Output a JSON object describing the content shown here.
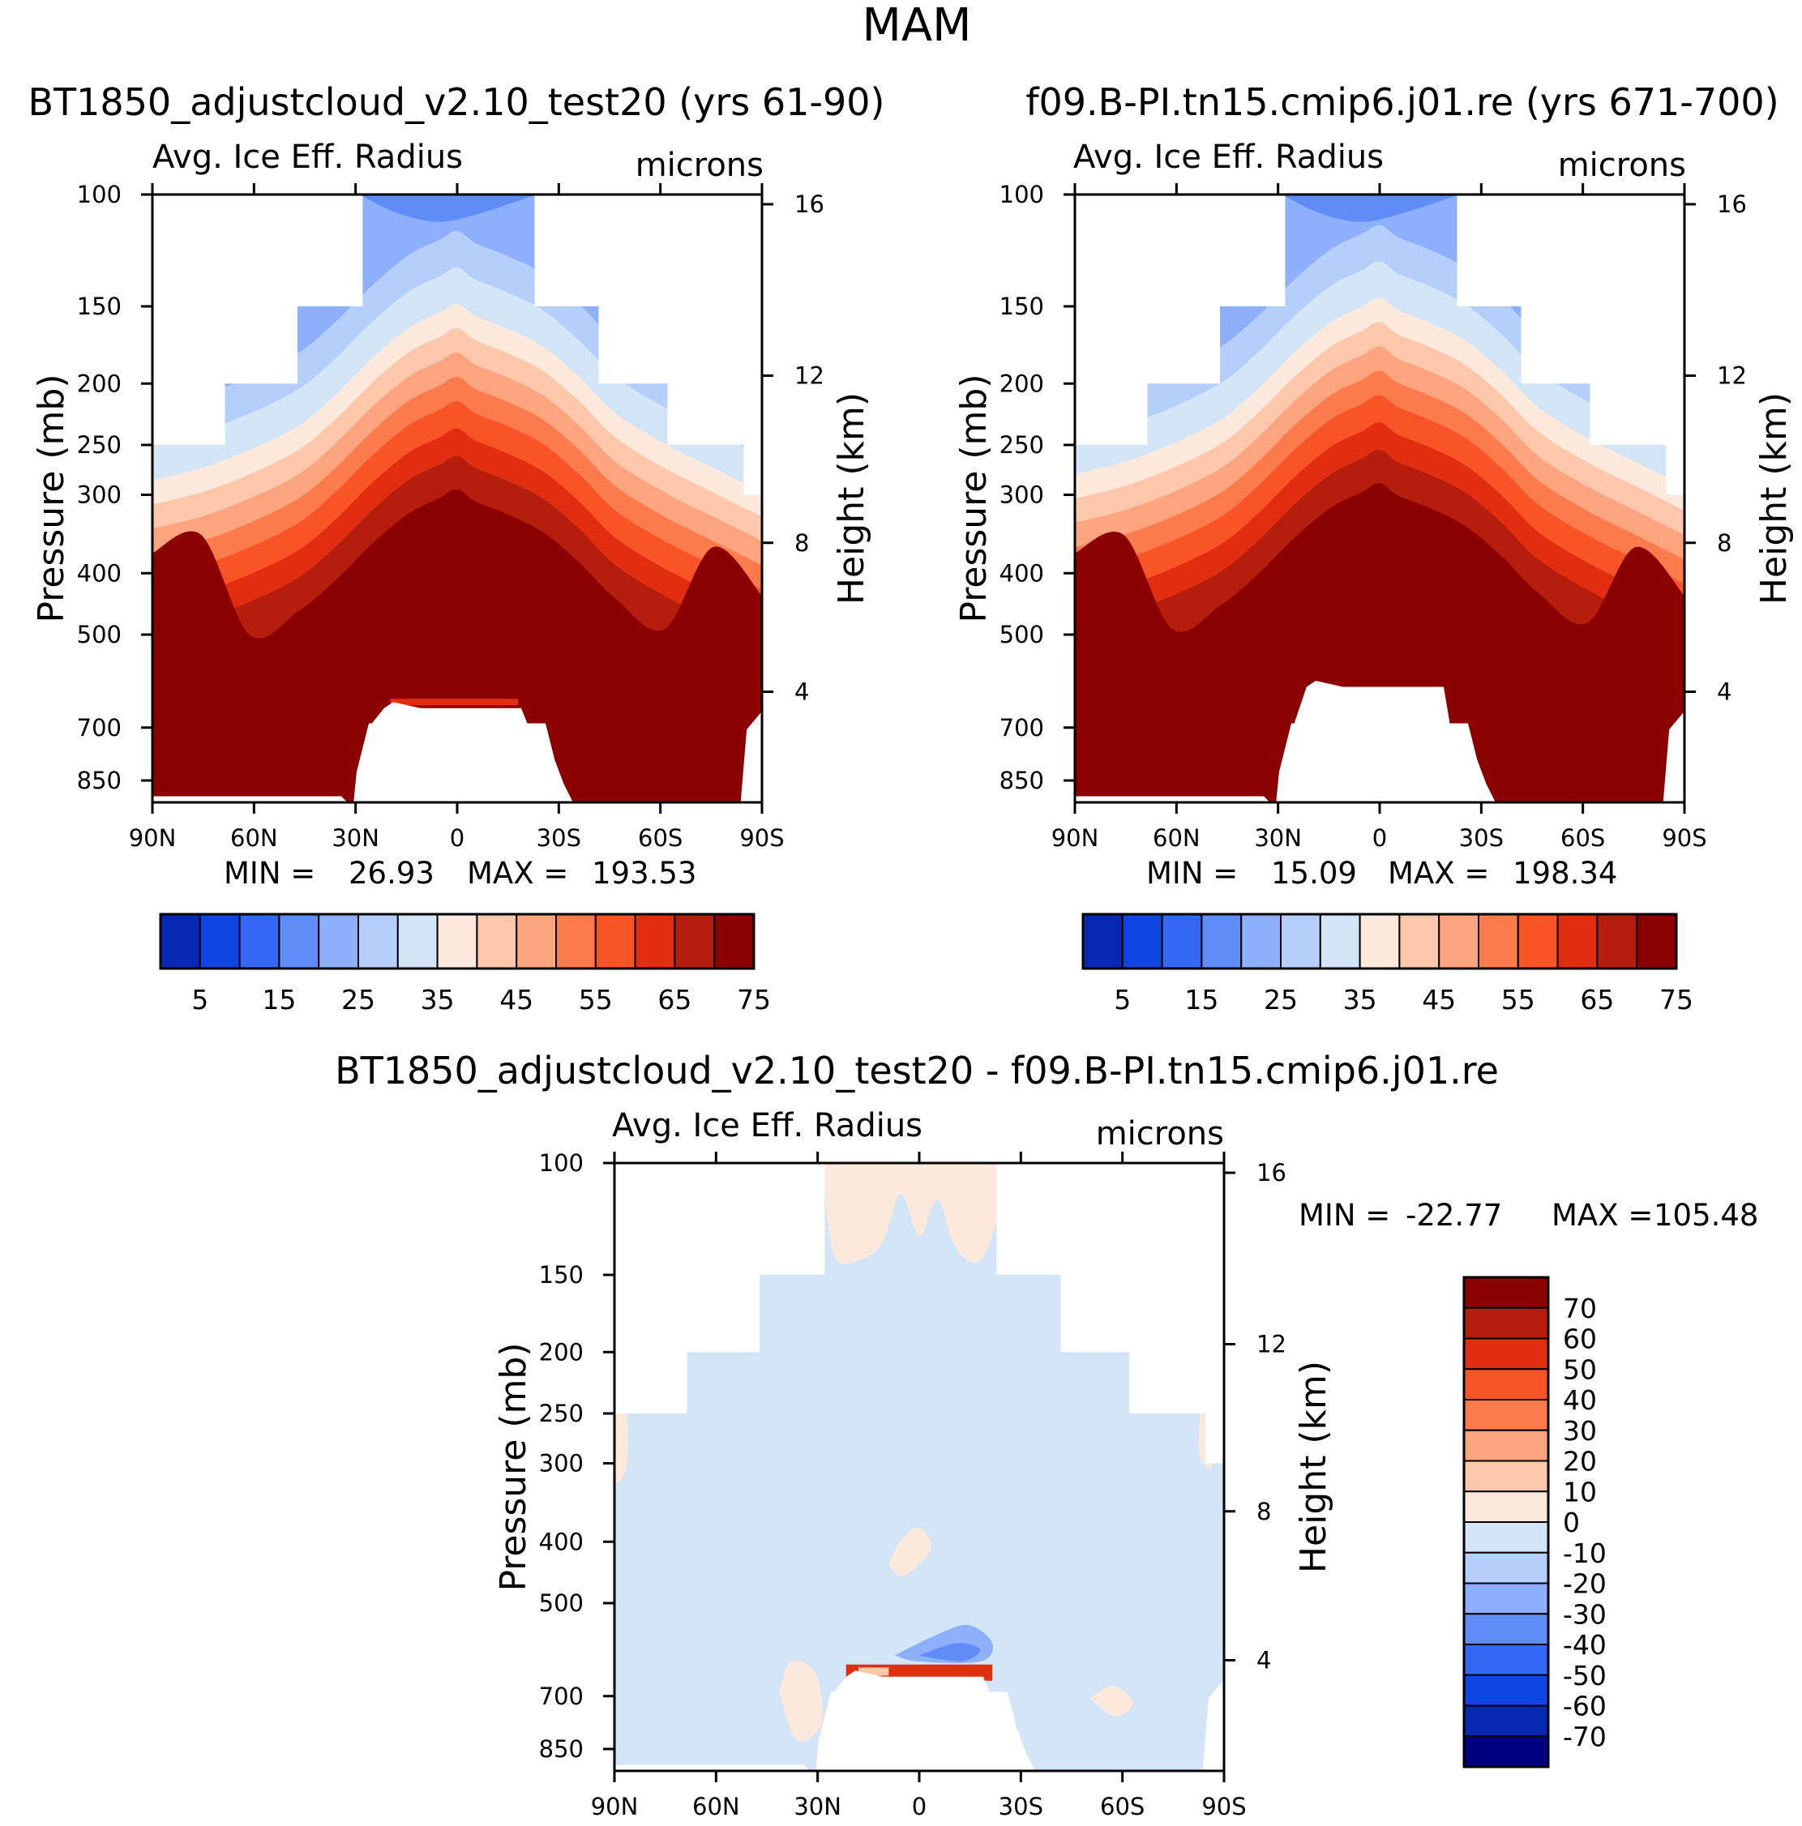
{
  "figure": {
    "title": "MAM",
    "colors": {
      "positive": [
        "#fde9dc",
        "#fcc7aa",
        "#fca47e",
        "#fb7b4d",
        "#f85428",
        "#e12e10",
        "#b51e0d",
        "#8b0000"
      ],
      "negative": [
        "#d3e6f8",
        "#b6cefc",
        "#8eb0fc",
        "#5f8cf8",
        "#3468f3",
        "#0f45e0",
        "#0628b2",
        "#000080"
      ],
      "land": "#ffffff"
    }
  },
  "chart_data": [
    {
      "type": "contour",
      "panel": "model",
      "header": "BT1850_adjustcloud_v2.10_test20 (yrs 61-90)",
      "field_label": "Avg. Ice Eff. Radius",
      "units": "microns",
      "ylabel": "Pressure (mb)",
      "y2label": "Height (km)",
      "x_ticks": [
        "90N",
        "60N",
        "30N",
        "0",
        "30S",
        "60S",
        "90S"
      ],
      "y_ticks": [
        "100",
        "150",
        "200",
        "250",
        "300",
        "400",
        "500",
        "700",
        "850"
      ],
      "y2_ticks": [
        "16",
        "12",
        "8",
        "4"
      ],
      "stats": {
        "min_label": "MIN =",
        "min": "26.93",
        "max_label": "MAX =",
        "max": "193.53"
      },
      "colorbar": {
        "orientation": "horizontal",
        "levels": 15,
        "labels": [
          "5",
          "15",
          "25",
          "35",
          "45",
          "55",
          "65",
          "75"
        ]
      }
    },
    {
      "type": "contour",
      "panel": "control",
      "header": "f09.B-PI.tn15.cmip6.j01.re (yrs 671-700)",
      "field_label": "Avg. Ice Eff. Radius",
      "units": "microns",
      "ylabel": "Pressure (mb)",
      "y2label": "Height (km)",
      "x_ticks": [
        "90N",
        "60N",
        "30N",
        "0",
        "30S",
        "60S",
        "90S"
      ],
      "y_ticks": [
        "100",
        "150",
        "200",
        "250",
        "300",
        "400",
        "500",
        "700",
        "850"
      ],
      "y2_ticks": [
        "16",
        "12",
        "8",
        "4"
      ],
      "stats": {
        "min_label": "MIN =",
        "min": "15.09",
        "max_label": "MAX =",
        "max": "198.34"
      },
      "colorbar": {
        "orientation": "horizontal",
        "levels": 15,
        "labels": [
          "5",
          "15",
          "25",
          "35",
          "45",
          "55",
          "65",
          "75"
        ]
      }
    },
    {
      "type": "contour",
      "panel": "difference",
      "header": "BT1850_adjustcloud_v2.10_test20 - f09.B-PI.tn15.cmip6.j01.re",
      "field_label": "Avg. Ice Eff. Radius",
      "units": "microns",
      "ylabel": "Pressure (mb)",
      "y2label": "Height (km)",
      "x_ticks": [
        "90N",
        "60N",
        "30N",
        "0",
        "30S",
        "60S",
        "90S"
      ],
      "y_ticks": [
        "100",
        "150",
        "200",
        "250",
        "300",
        "400",
        "500",
        "700",
        "850"
      ],
      "y2_ticks": [
        "16",
        "12",
        "8",
        "4"
      ],
      "stats": {
        "min_label": "MIN =",
        "min": "-22.77",
        "max_label": "MAX =",
        "max": "105.48"
      },
      "colorbar": {
        "orientation": "vertical",
        "levels": 16,
        "labels": [
          "70",
          "60",
          "50",
          "40",
          "30",
          "20",
          "10",
          "0",
          "-10",
          "-20",
          "-30",
          "-40",
          "-50",
          "-60",
          "-70"
        ]
      }
    }
  ]
}
